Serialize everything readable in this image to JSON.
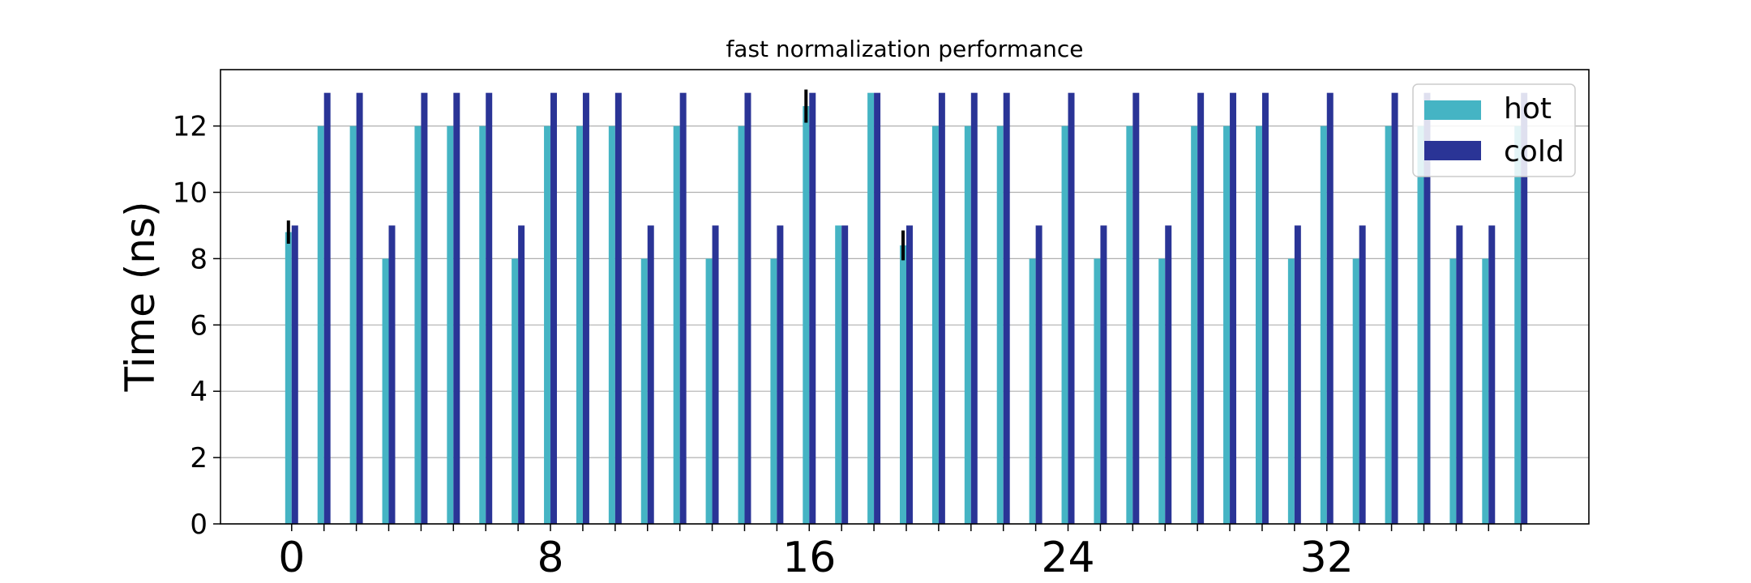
{
  "chart_data": {
    "type": "bar",
    "title": "fast normalization performance",
    "xlabel": "",
    "ylabel": "Time (ns)",
    "ylim": [
      0,
      13.7
    ],
    "xlim": [
      -2.2,
      40.1
    ],
    "y_ticks": [
      0,
      2,
      4,
      6,
      8,
      10,
      12
    ],
    "x_ticks": [
      0,
      8,
      16,
      24,
      32
    ],
    "grid": "horizontal",
    "legend_position": "top-right",
    "categories": [
      0,
      1,
      2,
      3,
      4,
      5,
      6,
      7,
      8,
      9,
      10,
      11,
      12,
      13,
      14,
      15,
      16,
      17,
      18,
      19,
      20,
      21,
      22,
      23,
      24,
      25,
      26,
      27,
      28,
      29,
      30,
      31,
      32,
      33,
      34,
      35,
      36,
      37,
      38
    ],
    "series": [
      {
        "name": "hot",
        "color": "#45b4c4",
        "values": [
          8.8,
          12,
          12,
          8,
          12,
          12,
          12,
          8,
          12,
          12,
          12,
          8,
          12,
          8,
          12,
          8,
          12.6,
          9,
          13,
          8.4,
          12,
          12,
          12,
          8,
          12,
          8,
          12,
          8,
          12,
          12,
          12,
          8,
          12,
          8,
          12,
          12,
          8,
          8,
          12
        ],
        "errors": [
          0.35,
          0,
          0,
          0,
          0,
          0,
          0,
          0,
          0,
          0,
          0,
          0,
          0,
          0,
          0,
          0,
          0.5,
          0,
          0,
          0.45,
          0,
          0,
          0,
          0,
          0,
          0,
          0,
          0,
          0,
          0,
          0,
          0,
          0,
          0,
          0,
          0,
          0,
          0,
          0
        ]
      },
      {
        "name": "cold",
        "color": "#2a3496",
        "values": [
          9,
          13,
          13,
          9,
          13,
          13,
          13,
          9,
          13,
          13,
          13,
          9,
          13,
          9,
          13,
          9,
          13,
          9,
          13,
          9,
          13,
          13,
          13,
          9,
          13,
          9,
          13,
          9,
          13,
          13,
          13,
          9,
          13,
          9,
          13,
          13,
          9,
          9,
          13
        ],
        "errors": [
          0,
          0,
          0,
          0,
          0,
          0,
          0,
          0,
          0,
          0,
          0,
          0,
          0,
          0,
          0,
          0,
          0,
          0,
          0,
          0,
          0,
          0,
          0,
          0,
          0,
          0,
          0,
          0,
          0,
          0,
          0,
          0,
          0,
          0,
          0,
          0,
          0,
          0,
          0
        ]
      }
    ]
  }
}
